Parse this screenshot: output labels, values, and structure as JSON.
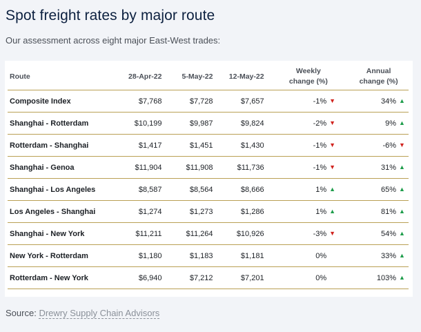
{
  "title": "Spot freight rates by major route",
  "subtitle": "Our assessment across eight major East-West trades:",
  "table": {
    "headers": {
      "route": "Route",
      "d1": "28-Apr-22",
      "d2": "5-May-22",
      "d3": "12-May-22",
      "weekly_line1": "Weekly",
      "weekly_line2": "change (%)",
      "annual_line1": "Annual",
      "annual_line2": "change (%)"
    },
    "rows": [
      {
        "route": "Composite Index",
        "d1": "$7,768",
        "d2": "$7,728",
        "d3": "$7,657",
        "weekly": "-1%",
        "weekly_dir": "down",
        "annual": "34%",
        "annual_dir": "up"
      },
      {
        "route": "Shanghai - Rotterdam",
        "d1": "$10,199",
        "d2": "$9,987",
        "d3": "$9,824",
        "weekly": "-2%",
        "weekly_dir": "down",
        "annual": "9%",
        "annual_dir": "up"
      },
      {
        "route": "Rotterdam - Shanghai",
        "d1": "$1,417",
        "d2": "$1,451",
        "d3": "$1,430",
        "weekly": "-1%",
        "weekly_dir": "down",
        "annual": "-6%",
        "annual_dir": "down"
      },
      {
        "route": "Shanghai - Genoa",
        "d1": "$11,904",
        "d2": "$11,908",
        "d3": "$11,736",
        "weekly": "-1%",
        "weekly_dir": "down",
        "annual": "31%",
        "annual_dir": "up"
      },
      {
        "route": "Shanghai - Los Angeles",
        "d1": "$8,587",
        "d2": "$8,564",
        "d3": "$8,666",
        "weekly": "1%",
        "weekly_dir": "up",
        "annual": "65%",
        "annual_dir": "up"
      },
      {
        "route": "Los Angeles - Shanghai",
        "d1": "$1,274",
        "d2": "$1,273",
        "d3": "$1,286",
        "weekly": "1%",
        "weekly_dir": "up",
        "annual": "81%",
        "annual_dir": "up"
      },
      {
        "route": "Shanghai - New York",
        "d1": "$11,211",
        "d2": "$11,264",
        "d3": "$10,926",
        "weekly": "-3%",
        "weekly_dir": "down",
        "annual": "54%",
        "annual_dir": "up"
      },
      {
        "route": "New York - Rotterdam",
        "d1": "$1,180",
        "d2": "$1,183",
        "d3": "$1,181",
        "weekly": "0%",
        "weekly_dir": "none",
        "annual": "33%",
        "annual_dir": "up"
      },
      {
        "route": "Rotterdam - New York",
        "d1": "$6,940",
        "d2": "$7,212",
        "d3": "$7,201",
        "weekly": "0%",
        "weekly_dir": "none",
        "annual": "103%",
        "annual_dir": "up"
      }
    ]
  },
  "source": {
    "label": "Source:",
    "link_text": "Drewry Supply Chain Advisors"
  },
  "colors": {
    "up": "#1e9d4b",
    "down": "#d0231e",
    "rule": "#b99f53",
    "title": "#0d2140"
  },
  "icons": {
    "up": "triangle-up-icon",
    "down": "triangle-down-icon"
  }
}
